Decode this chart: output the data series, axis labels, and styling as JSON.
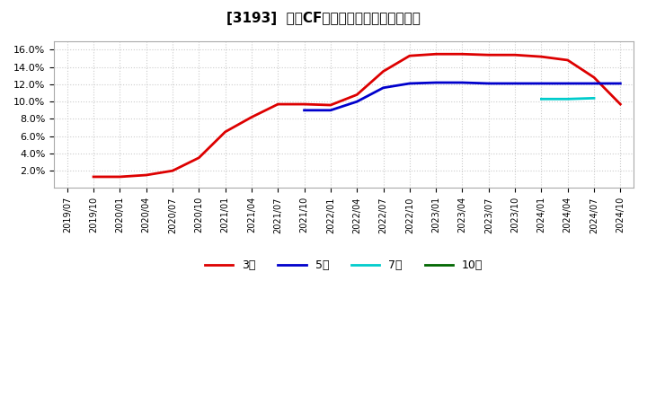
{
  "title": "[3193]  営業CFマージンの標準偏差の推移",
  "ylim": [
    0.0,
    0.17
  ],
  "yticks": [
    0.02,
    0.04,
    0.06,
    0.08,
    0.1,
    0.12,
    0.14,
    0.16
  ],
  "background_color": "#ffffff",
  "grid_color": "#cccccc",
  "series": {
    "3年": {
      "color": "#dd0000",
      "x": [
        "2019/10",
        "2020/01",
        "2020/04",
        "2020/07",
        "2020/10",
        "2021/01",
        "2021/04",
        "2021/07",
        "2021/10",
        "2022/01",
        "2022/04",
        "2022/07",
        "2022/10",
        "2023/01",
        "2023/04",
        "2023/07",
        "2023/10",
        "2024/01",
        "2024/04",
        "2024/07",
        "2024/10"
      ],
      "y": [
        0.013,
        0.013,
        0.015,
        0.02,
        0.035,
        0.065,
        0.082,
        0.097,
        0.097,
        0.096,
        0.108,
        0.135,
        0.153,
        0.155,
        0.155,
        0.154,
        0.154,
        0.152,
        0.148,
        0.128,
        0.097
      ]
    },
    "5年": {
      "color": "#0000cc",
      "x": [
        "2021/10",
        "2022/01",
        "2022/04",
        "2022/07",
        "2022/10",
        "2023/01",
        "2023/04",
        "2023/07",
        "2023/10",
        "2024/01",
        "2024/04",
        "2024/07",
        "2024/10"
      ],
      "y": [
        0.09,
        0.09,
        0.1,
        0.116,
        0.121,
        0.122,
        0.122,
        0.121,
        0.121,
        0.121,
        0.121,
        0.121,
        0.121
      ]
    },
    "7年": {
      "color": "#00cccc",
      "x": [
        "2024/01",
        "2024/04",
        "2024/07"
      ],
      "y": [
        0.103,
        0.103,
        0.104
      ]
    },
    "10年": {
      "color": "#006600",
      "x": [],
      "y": []
    }
  },
  "x_labels": [
    "2019/07",
    "2019/10",
    "2020/01",
    "2020/04",
    "2020/07",
    "2020/10",
    "2021/01",
    "2021/04",
    "2021/07",
    "2021/10",
    "2022/01",
    "2022/04",
    "2022/07",
    "2022/10",
    "2023/01",
    "2023/04",
    "2023/07",
    "2023/10",
    "2024/01",
    "2024/04",
    "2024/07",
    "2024/10"
  ],
  "legend_labels": [
    "3年",
    "5年",
    "7年",
    "10年"
  ],
  "legend_colors": [
    "#dd0000",
    "#0000cc",
    "#00cccc",
    "#006600"
  ]
}
